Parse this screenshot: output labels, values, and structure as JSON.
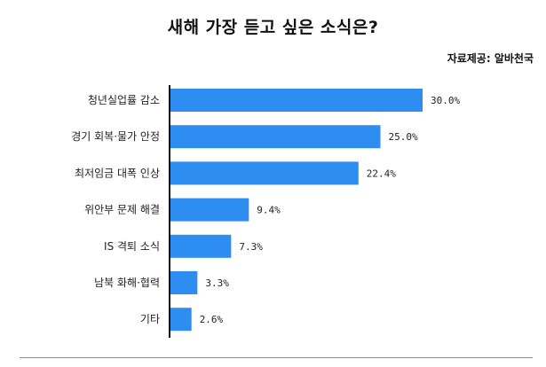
{
  "chart_data": {
    "type": "bar",
    "orientation": "horizontal",
    "title": "새해 가장 듣고 싶은 소식은?",
    "source": "자료제공: 알바천국",
    "categories": [
      "청년실업률 감소",
      "경기 회복·물가 안정",
      "최저임금 대폭 인상",
      "위안부 문제 해결",
      "IS 격퇴 소식",
      "남북 화해·협력",
      "기타"
    ],
    "values": [
      30.0,
      25.0,
      22.4,
      9.4,
      7.3,
      3.3,
      2.6
    ],
    "value_labels": [
      "30.0%",
      "25.0%",
      "22.4%",
      "9.4%",
      "7.3%",
      "3.3%",
      "2.6%"
    ],
    "xlim": [
      0,
      30
    ],
    "grid": false,
    "bar_color": "#2e8df0"
  }
}
